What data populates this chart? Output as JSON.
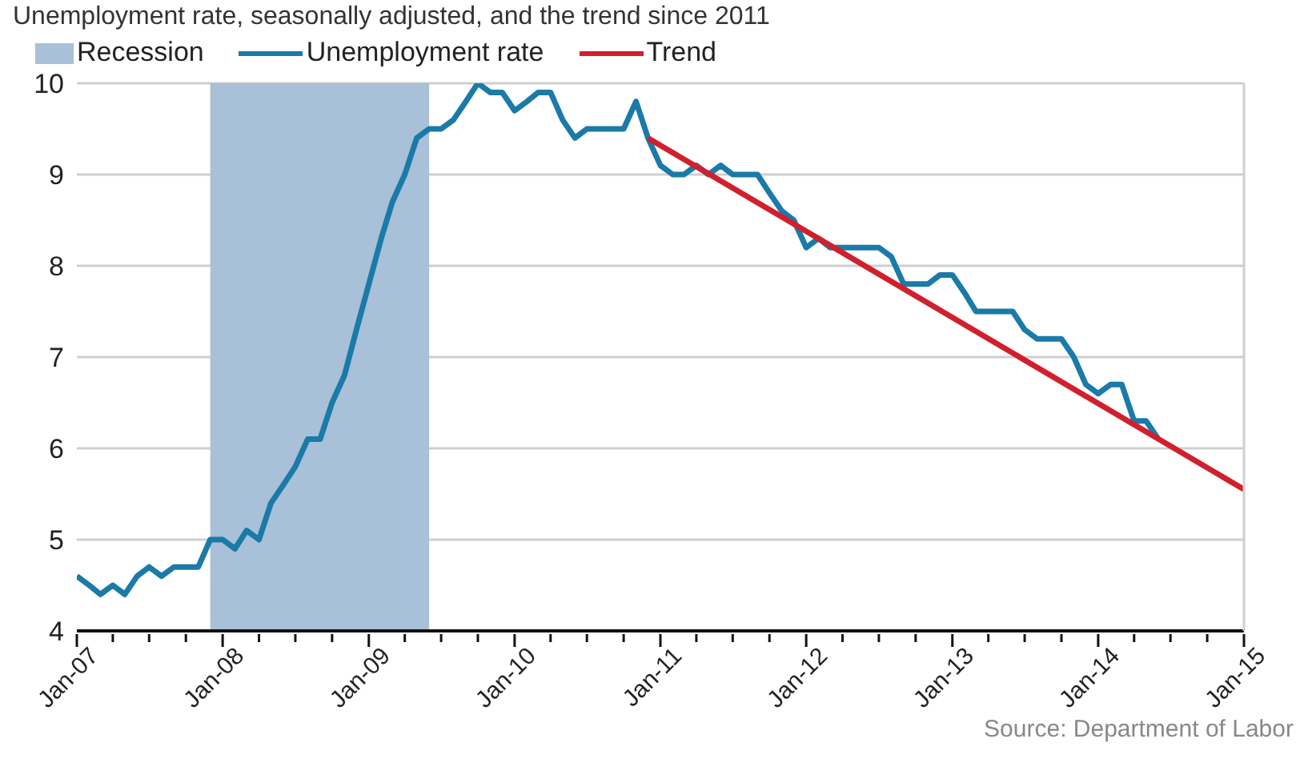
{
  "chart_data": {
    "type": "line",
    "title": "Unemployment rate, seasonally adjusted, and the trend since 2011",
    "annotations": [
      "Source: Department of Labor"
    ],
    "x": [
      "2007-01",
      "2007-02",
      "2007-03",
      "2007-04",
      "2007-05",
      "2007-06",
      "2007-07",
      "2007-08",
      "2007-09",
      "2007-10",
      "2007-11",
      "2007-12",
      "2008-01",
      "2008-02",
      "2008-03",
      "2008-04",
      "2008-05",
      "2008-06",
      "2008-07",
      "2008-08",
      "2008-09",
      "2008-10",
      "2008-11",
      "2008-12",
      "2009-01",
      "2009-02",
      "2009-03",
      "2009-04",
      "2009-05",
      "2009-06",
      "2009-07",
      "2009-08",
      "2009-09",
      "2009-10",
      "2009-11",
      "2009-12",
      "2010-01",
      "2010-02",
      "2010-03",
      "2010-04",
      "2010-05",
      "2010-06",
      "2010-07",
      "2010-08",
      "2010-09",
      "2010-10",
      "2010-11",
      "2010-12",
      "2011-01",
      "2011-02",
      "2011-03",
      "2011-04",
      "2011-05",
      "2011-06",
      "2011-07",
      "2011-08",
      "2011-09",
      "2011-10",
      "2011-11",
      "2011-12",
      "2012-01",
      "2012-02",
      "2012-03",
      "2012-04",
      "2012-05",
      "2012-06",
      "2012-07",
      "2012-08",
      "2012-09",
      "2012-10",
      "2012-11",
      "2012-12",
      "2013-01",
      "2013-02",
      "2013-03",
      "2013-04",
      "2013-05",
      "2013-06",
      "2013-07",
      "2013-08",
      "2013-09",
      "2013-10",
      "2013-11",
      "2013-12",
      "2014-01",
      "2014-02",
      "2014-03",
      "2014-04",
      "2014-05",
      "2014-06"
    ],
    "series": [
      {
        "name": "Unemployment rate",
        "color": "#1a7aa8",
        "values": [
          4.6,
          4.5,
          4.4,
          4.5,
          4.4,
          4.6,
          4.7,
          4.6,
          4.7,
          4.7,
          4.7,
          5.0,
          5.0,
          4.9,
          5.1,
          5.0,
          5.4,
          5.6,
          5.8,
          6.1,
          6.1,
          6.5,
          6.8,
          7.3,
          7.8,
          8.3,
          8.7,
          9.0,
          9.4,
          9.5,
          9.5,
          9.6,
          9.8,
          10.0,
          9.9,
          9.9,
          9.7,
          9.8,
          9.9,
          9.9,
          9.6,
          9.4,
          9.5,
          9.5,
          9.5,
          9.5,
          9.8,
          9.4,
          9.1,
          9.0,
          9.0,
          9.1,
          9.0,
          9.1,
          9.0,
          9.0,
          9.0,
          8.8,
          8.6,
          8.5,
          8.2,
          8.3,
          8.2,
          8.2,
          8.2,
          8.2,
          8.2,
          8.1,
          7.8,
          7.8,
          7.8,
          7.9,
          7.9,
          7.7,
          7.5,
          7.5,
          7.5,
          7.5,
          7.3,
          7.2,
          7.2,
          7.2,
          7.0,
          6.7,
          6.6,
          6.7,
          6.7,
          6.3,
          6.3,
          6.1
        ]
      },
      {
        "name": "Trend",
        "type": "line",
        "color": "#d0202e",
        "x": [
          "2010-12",
          "2015-01"
        ],
        "values": [
          9.4,
          5.55
        ]
      }
    ],
    "bands": [
      {
        "axis": "x",
        "from": "2007-12",
        "to": "2009-06",
        "label": "Recession",
        "color": "#a8c0d8"
      }
    ],
    "xlim": [
      "2007-01",
      "2015-01"
    ],
    "xticks": [
      {
        "value": "2007-01",
        "label": "Jan-07"
      },
      {
        "value": "2007-04",
        "label": null
      },
      {
        "value": "2007-07",
        "label": null
      },
      {
        "value": "2007-10",
        "label": null
      },
      {
        "value": "2008-01",
        "label": "Jan-08"
      },
      {
        "value": "2008-04",
        "label": null
      },
      {
        "value": "2008-07",
        "label": null
      },
      {
        "value": "2008-10",
        "label": null
      },
      {
        "value": "2009-01",
        "label": "Jan-09"
      },
      {
        "value": "2009-04",
        "label": null
      },
      {
        "value": "2009-07",
        "label": null
      },
      {
        "value": "2009-10",
        "label": null
      },
      {
        "value": "2010-01",
        "label": "Jan-10"
      },
      {
        "value": "2010-04",
        "label": null
      },
      {
        "value": "2010-07",
        "label": null
      },
      {
        "value": "2010-10",
        "label": null
      },
      {
        "value": "2011-01",
        "label": "Jan-11"
      },
      {
        "value": "2011-04",
        "label": null
      },
      {
        "value": "2011-07",
        "label": null
      },
      {
        "value": "2011-10",
        "label": null
      },
      {
        "value": "2012-01",
        "label": "Jan-12"
      },
      {
        "value": "2012-04",
        "label": null
      },
      {
        "value": "2012-07",
        "label": null
      },
      {
        "value": "2012-10",
        "label": null
      },
      {
        "value": "2013-01",
        "label": "Jan-13"
      },
      {
        "value": "2013-04",
        "label": null
      },
      {
        "value": "2013-07",
        "label": null
      },
      {
        "value": "2013-10",
        "label": null
      },
      {
        "value": "2014-01",
        "label": "Jan-14"
      },
      {
        "value": "2014-04",
        "label": null
      },
      {
        "value": "2014-07",
        "label": null
      },
      {
        "value": "2014-10",
        "label": null
      },
      {
        "value": "2015-01",
        "label": "Jan-15"
      }
    ],
    "ylim": [
      4,
      10
    ],
    "yticks": [
      4,
      5,
      6,
      7,
      8,
      9,
      10
    ],
    "grid": "y",
    "legend": "top left",
    "marker": "none",
    "line_style": "solid"
  }
}
